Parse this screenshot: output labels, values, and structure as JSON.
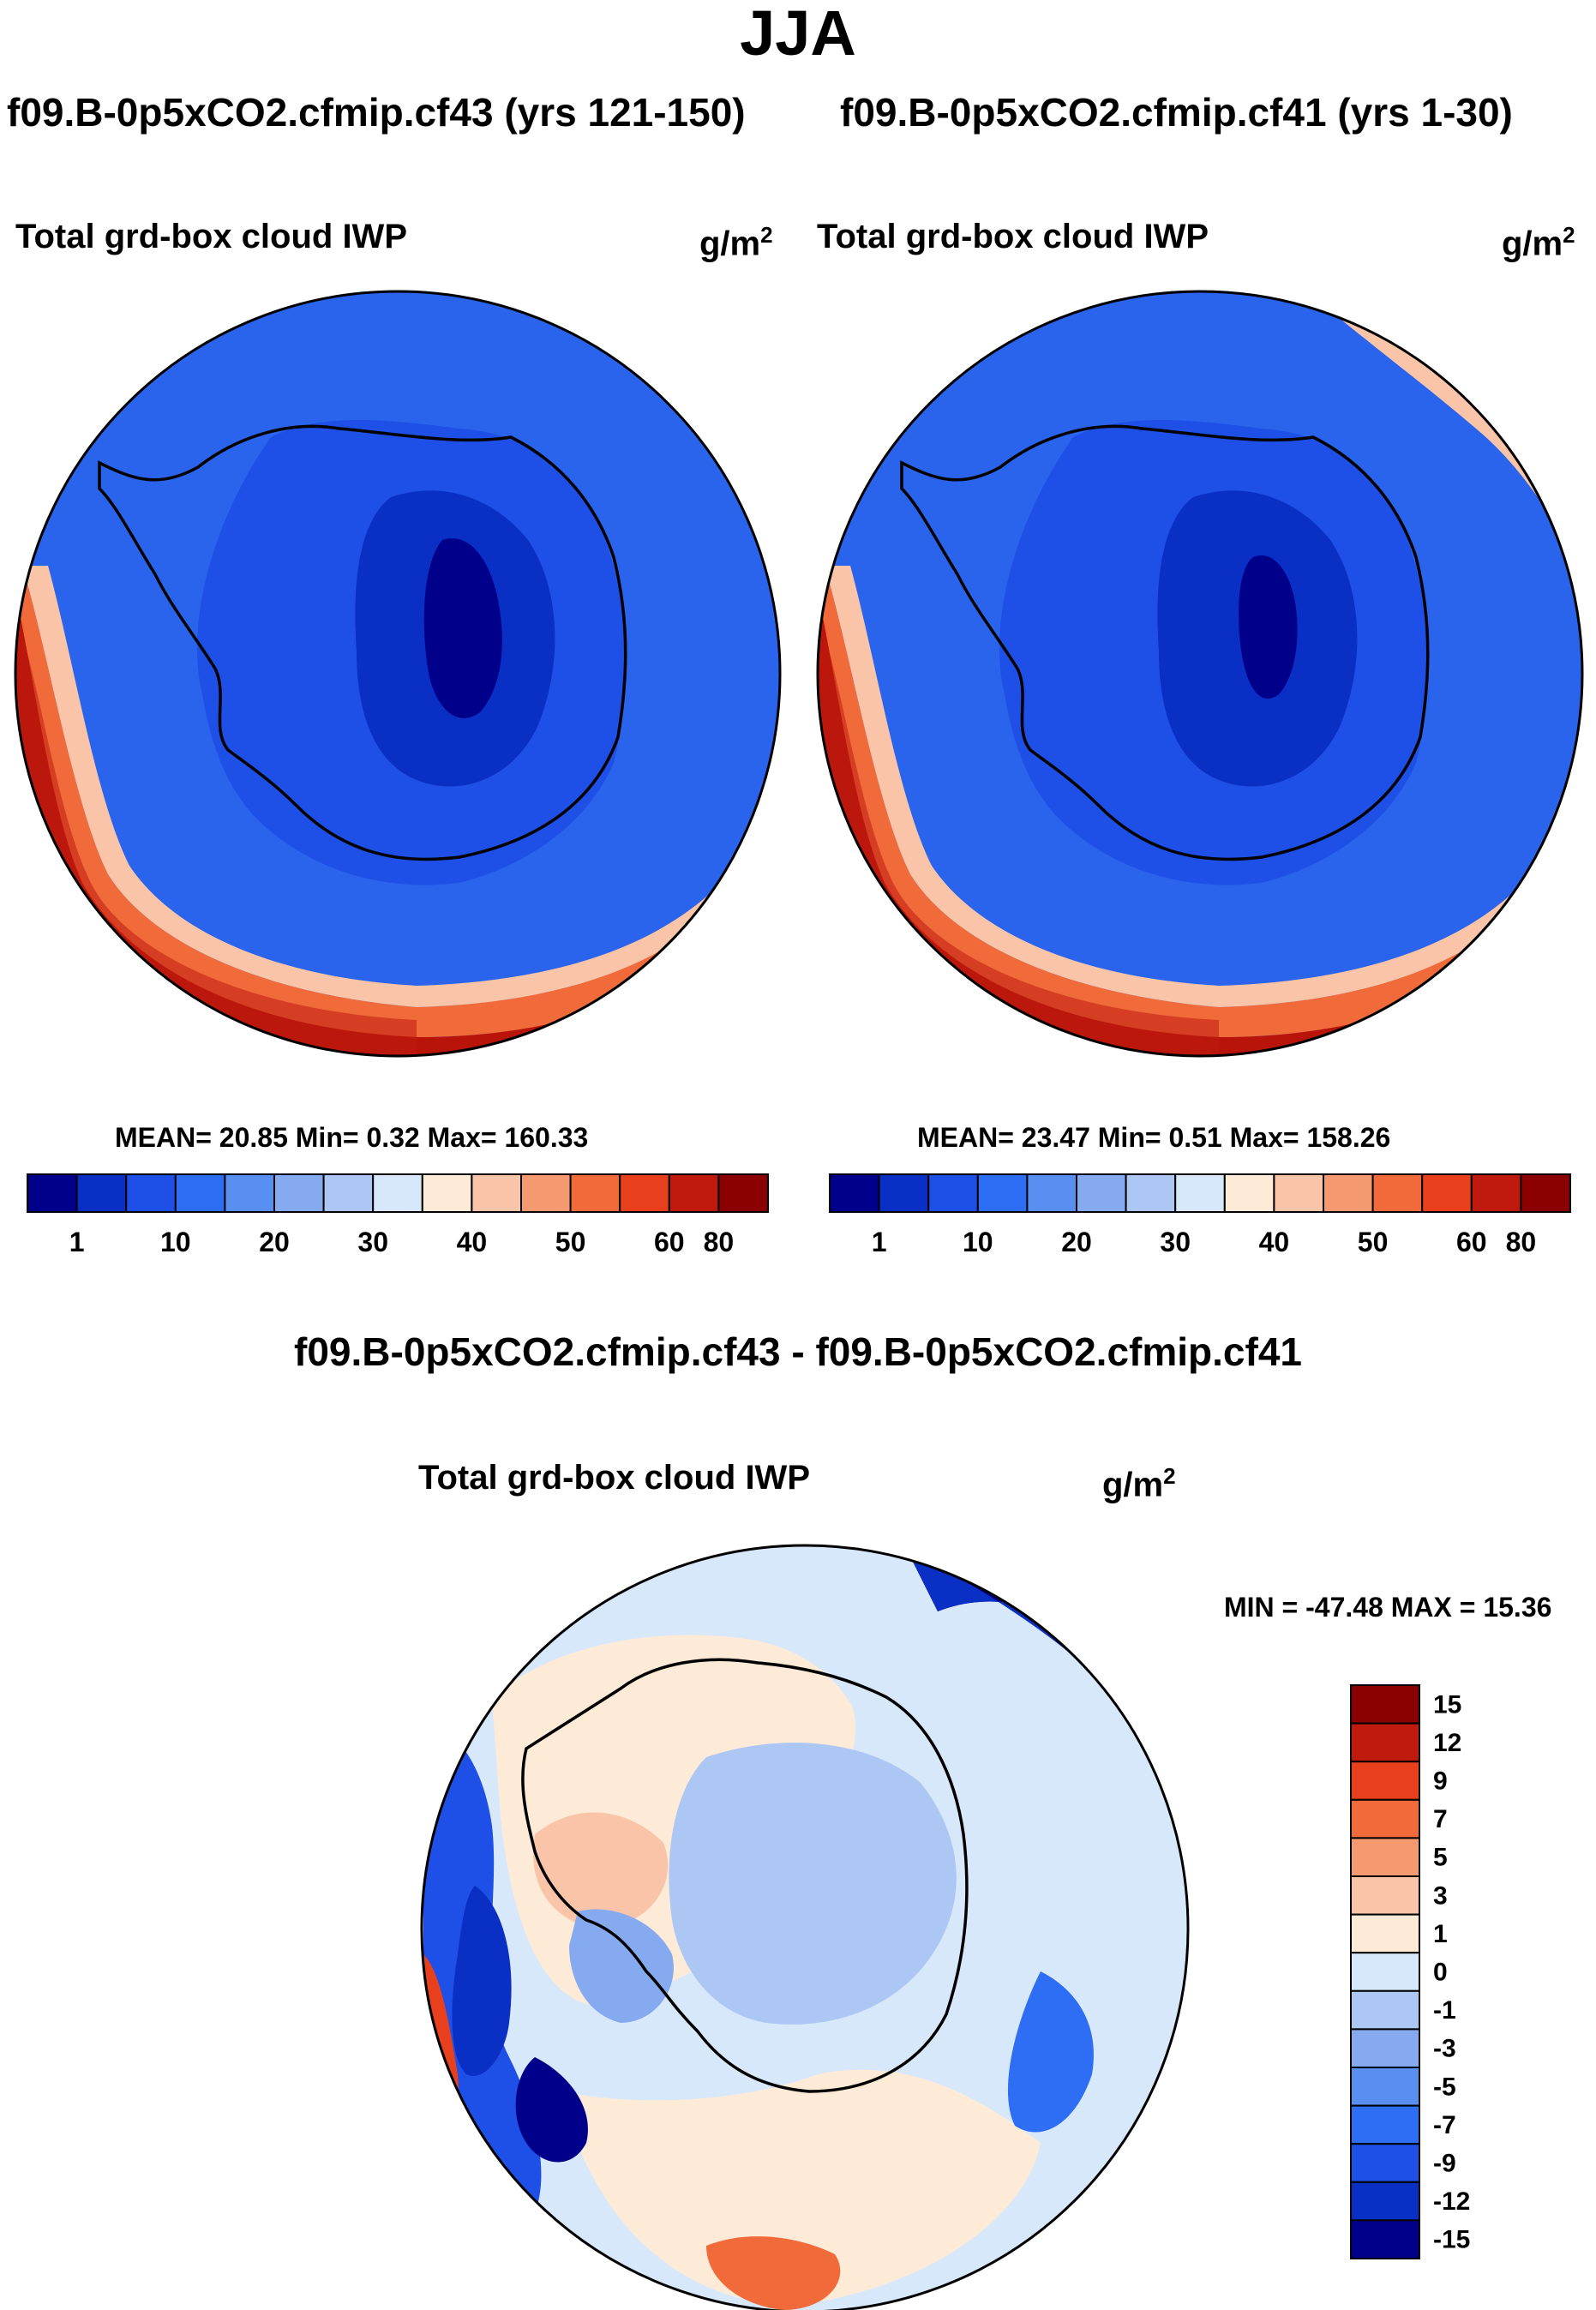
{
  "season": "JJA",
  "panels": [
    {
      "case_title": "f09.B-0p5xCO2.cfmip.cf43 (yrs 121-150)",
      "variable": "Total grd-box cloud IWP",
      "units_base": "g/m",
      "units_exp": "2",
      "stats": "MEAN=  20.85  Min=   0.32  Max= 160.33",
      "map_icon": "antarctic-polar-stereographic-map"
    },
    {
      "case_title": "f09.B-0p5xCO2.cfmip.cf41 (yrs 1-30)",
      "variable": "Total grd-box cloud IWP",
      "units_base": "g/m",
      "units_exp": "2",
      "stats": "MEAN=  23.47  Min=   0.51  Max= 158.26",
      "map_icon": "antarctic-polar-stereographic-map"
    }
  ],
  "difference": {
    "title": "f09.B-0p5xCO2.cfmip.cf43 - f09.B-0p5xCO2.cfmip.cf41",
    "variable": "Total grd-box cloud IWP",
    "units_base": "g/m",
    "units_exp": "2",
    "minmax": "MIN = -47.48 MAX =  15.36",
    "map_icon": "antarctic-difference-map"
  },
  "chart_data": [
    {
      "type": "heatmap",
      "title": "Total grd-box cloud IWP",
      "subtitle": "f09.B-0p5xCO2.cfmip.cf43 (yrs 121-150)",
      "units": "g/m^2",
      "statistics": {
        "mean": 20.85,
        "min": 0.32,
        "max": 160.33
      },
      "colorbar": {
        "orientation": "horizontal",
        "tick_labels": [
          "1",
          "10",
          "20",
          "30",
          "40",
          "50",
          "60",
          "80"
        ],
        "colors": [
          "#00008b",
          "#0a2fc4",
          "#1e4fe6",
          "#2e6ef5",
          "#5a8ff2",
          "#86aaf0",
          "#adc7f5",
          "#d8e8fb",
          "#fdebd8",
          "#f9c4a8",
          "#f59a70",
          "#f06a3a",
          "#e8401c",
          "#c01a0f",
          "#8b0000"
        ]
      }
    },
    {
      "type": "heatmap",
      "title": "Total grd-box cloud IWP",
      "subtitle": "f09.B-0p5xCO2.cfmip.cf41 (yrs 1-30)",
      "units": "g/m^2",
      "statistics": {
        "mean": 23.47,
        "min": 0.51,
        "max": 158.26
      },
      "colorbar": {
        "orientation": "horizontal",
        "tick_labels": [
          "1",
          "10",
          "20",
          "30",
          "40",
          "50",
          "60",
          "80"
        ],
        "colors": [
          "#00008b",
          "#0a2fc4",
          "#1e4fe6",
          "#2e6ef5",
          "#5a8ff2",
          "#86aaf0",
          "#adc7f5",
          "#d8e8fb",
          "#fdebd8",
          "#f9c4a8",
          "#f59a70",
          "#f06a3a",
          "#e8401c",
          "#c01a0f",
          "#8b0000"
        ]
      }
    },
    {
      "type": "heatmap",
      "title": "Total grd-box cloud IWP",
      "subtitle": "f09.B-0p5xCO2.cfmip.cf43 - f09.B-0p5xCO2.cfmip.cf41",
      "units": "g/m^2",
      "statistics": {
        "min": -47.48,
        "max": 15.36
      },
      "colorbar": {
        "orientation": "vertical",
        "tick_labels": [
          "15",
          "12",
          "9",
          "7",
          "5",
          "3",
          "1",
          "0",
          "-1",
          "-3",
          "-5",
          "-7",
          "-9",
          "-12",
          "-15"
        ],
        "colors": [
          "#8b0000",
          "#c01a0f",
          "#e8401c",
          "#f06a3a",
          "#f59a70",
          "#f9c4a8",
          "#fdebd8",
          "#d8e8fb",
          "#adc7f5",
          "#86aaf0",
          "#5a8ff2",
          "#2e6ef5",
          "#1e4fe6",
          "#0a2fc4",
          "#00008b"
        ]
      }
    }
  ]
}
